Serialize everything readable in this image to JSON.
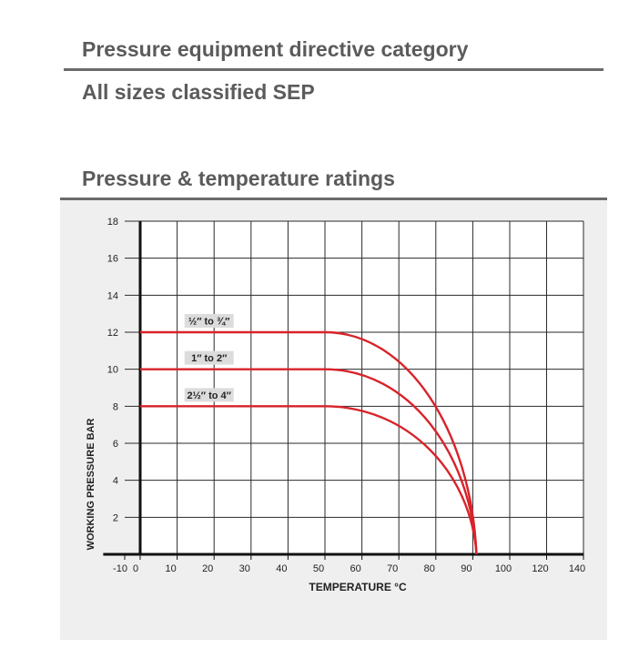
{
  "headings": {
    "ped_title": "Pressure equipment directive category",
    "ped_value": "All sizes classified SEP",
    "ratings_title": "Pressure & temperature ratings"
  },
  "chart_data": {
    "type": "line",
    "title": "",
    "xlabel": "TEMPERATURE °C",
    "ylabel": "WORKING PRESSURE BAR",
    "xlim": [
      -10,
      140
    ],
    "ylim": [
      0,
      18
    ],
    "x_ticks": [
      -10,
      0,
      10,
      20,
      30,
      40,
      50,
      60,
      70,
      80,
      90,
      100,
      120,
      140
    ],
    "y_ticks": [
      2,
      4,
      6,
      8,
      10,
      12,
      14,
      16,
      18
    ],
    "grid": true,
    "legend": "none",
    "line_color": "#d8232a",
    "series": [
      {
        "name": "½″ to ¾″",
        "x": [
          0,
          50,
          60,
          70,
          80,
          91
        ],
        "y": [
          12,
          12,
          11.4,
          9.7,
          6.6,
          0
        ]
      },
      {
        "name": "1″ to 2″",
        "x": [
          0,
          50,
          60,
          70,
          80,
          91
        ],
        "y": [
          10,
          10,
          9.3,
          7.6,
          5.0,
          0
        ]
      },
      {
        "name": "2½″ to 4″",
        "x": [
          0,
          50,
          60,
          70,
          80,
          91
        ],
        "y": [
          8,
          8,
          7.2,
          5.6,
          3.5,
          0
        ]
      }
    ]
  }
}
